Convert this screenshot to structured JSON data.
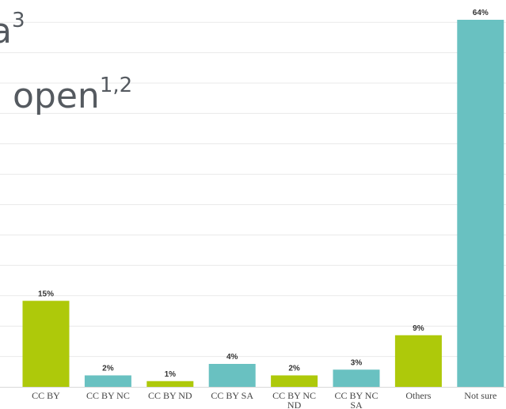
{
  "overlay": {
    "line1_text": "a",
    "line1_sup": "3",
    "line2_text": "open",
    "line2_sup": "1,2"
  },
  "colors": {
    "green": "#aec90a",
    "teal": "#69c1c1",
    "grid": "#e9e9e9"
  },
  "chart_data": {
    "type": "bar",
    "title": "",
    "xlabel": "",
    "ylabel": "",
    "ylim": [
      0,
      64
    ],
    "grid": true,
    "categories": [
      [
        "CC BY"
      ],
      [
        "CC BY NC"
      ],
      [
        "CC BY ND"
      ],
      [
        "CC BY SA"
      ],
      [
        "CC BY NC",
        "ND"
      ],
      [
        "CC BY NC",
        "SA"
      ],
      [
        "Others"
      ],
      [
        "Not sure"
      ]
    ],
    "values": [
      15,
      2,
      1,
      4,
      2,
      3,
      9,
      64
    ],
    "value_labels": [
      "15%",
      "2%",
      "1%",
      "4%",
      "2%",
      "3%",
      "9%",
      "64%"
    ],
    "bar_colors": [
      "green",
      "teal",
      "green",
      "teal",
      "green",
      "teal",
      "green",
      "teal"
    ]
  }
}
